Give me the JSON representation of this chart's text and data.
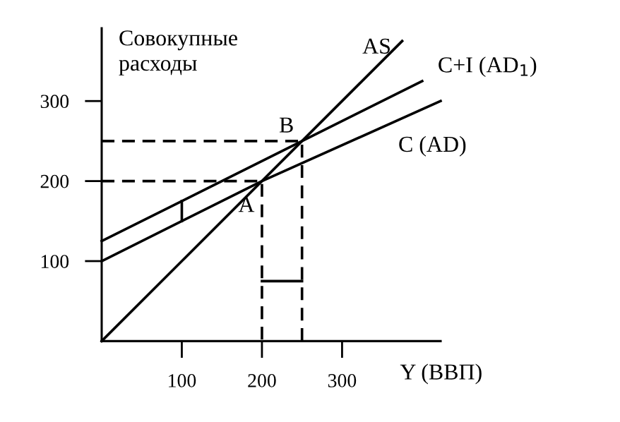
{
  "chart_data": {
    "type": "line",
    "ylabel": "Совокупные\nрасходы",
    "xlabel": "Y (ВВП)",
    "xlim": [
      0,
      423
    ],
    "ylim": [
      0,
      391
    ],
    "xticks": [
      100,
      200,
      300
    ],
    "yticks": [
      100,
      200,
      300
    ],
    "grid": false,
    "marker": "none",
    "series": [
      {
        "name": "AS",
        "color": "#000000",
        "x": [
          0,
          375
        ],
        "values": [
          0,
          375
        ],
        "line_style": "solid"
      },
      {
        "name": "C+I (AD$_{1}$)",
        "color": "#000000",
        "x": [
          0,
          250,
          400
        ],
        "values": [
          125,
          250,
          325
        ],
        "line_style": "solid"
      },
      {
        "name": "C (AD)",
        "color": "#000000",
        "x": [
          0,
          200,
          423
        ],
        "values": [
          100,
          200,
          300
        ],
        "line_style": "solid"
      },
      {
        "color": "#000000",
        "x": [
          0,
          250,
          250
        ],
        "values": [
          250,
          250,
          0
        ],
        "line_style": "dashed"
      },
      {
        "color": "#000000",
        "x": [
          0,
          200,
          200
        ],
        "values": [
          200,
          200,
          0
        ],
        "line_style": "dashed"
      },
      {
        "color": "#000000",
        "x": [
          100,
          100
        ],
        "values": [
          150,
          175
        ],
        "line_style": "solid"
      },
      {
        "color": "#000000",
        "x": [
          200,
          250
        ],
        "values": [
          75,
          75
        ],
        "line_style": "solid"
      }
    ],
    "annotations": [
      {
        "text": "B",
        "x": 250,
        "y": 250
      },
      {
        "text": "A",
        "x": 200,
        "y": 200
      }
    ]
  }
}
